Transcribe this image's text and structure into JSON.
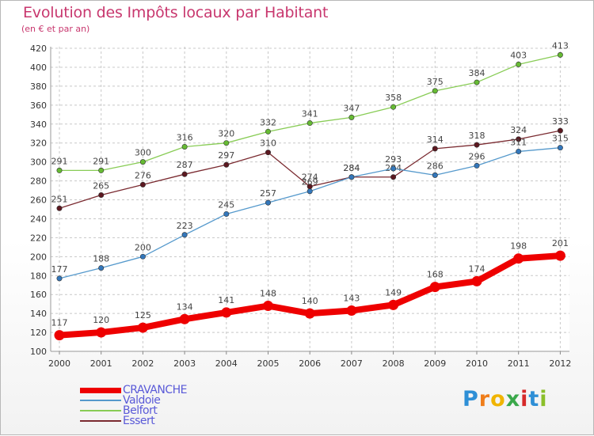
{
  "header": {
    "title": "Evolution des Impôts locaux par Habitant",
    "subtitle": "(en € et par an)"
  },
  "chart_data": {
    "type": "line",
    "x": [
      "2000",
      "2001",
      "2002",
      "2003",
      "2004",
      "2005",
      "2006",
      "2007",
      "2008",
      "2009",
      "2010",
      "2011",
      "2012"
    ],
    "y_ticks": [
      100,
      120,
      140,
      160,
      180,
      200,
      220,
      240,
      260,
      280,
      300,
      320,
      340,
      360,
      380,
      400,
      420
    ],
    "ylim": [
      100,
      420
    ],
    "grid": "dashed horizontal and vertical",
    "legend_position": "bottom-left",
    "series": [
      {
        "name": "Belfort",
        "color": "#88cc55",
        "dot": "#66bb33",
        "width": 1.3,
        "values": [
          291,
          291,
          300,
          316,
          320,
          332,
          341,
          347,
          358,
          375,
          384,
          403,
          413
        ],
        "labels": [
          "291",
          "291",
          "300",
          "316",
          "320",
          "332",
          "341",
          "347",
          "358",
          "375",
          "384",
          "403",
          "413"
        ]
      },
      {
        "name": "Essert",
        "color": "#7a2a30",
        "dot": "#5c1820",
        "width": 1.3,
        "values": [
          251,
          265,
          276,
          287,
          297,
          310,
          274,
          284,
          284,
          314,
          318,
          324,
          333
        ],
        "labels": [
          "251",
          "265",
          "276",
          "287",
          "297",
          "310",
          "274",
          "284",
          "284",
          "314",
          "318",
          "324",
          "333"
        ]
      },
      {
        "name": "Valdoie",
        "color": "#5599cc",
        "dot": "#3377bb",
        "width": 1.3,
        "values": [
          177,
          188,
          200,
          223,
          245,
          257,
          269,
          284,
          293,
          286,
          296,
          311,
          315
        ],
        "labels": [
          "177",
          "188",
          "200",
          "223",
          "245",
          "257",
          "269",
          "284",
          "293",
          "286",
          "296",
          "311",
          "315"
        ]
      },
      {
        "name": "CRAVANCHE",
        "color": "#ee0000",
        "dot": "#ee0000",
        "width": 8,
        "values": [
          117,
          120,
          125,
          134,
          141,
          148,
          140,
          143,
          149,
          168,
          174,
          198,
          201
        ],
        "labels": [
          "117",
          "120",
          "125",
          "134",
          "141",
          "148",
          "140",
          "143",
          "149",
          "168",
          "174",
          "198",
          "201"
        ]
      }
    ]
  },
  "legend": {
    "items": [
      {
        "name": "CRAVANCHE",
        "color": "#ee0000",
        "thickness": 7
      },
      {
        "name": "Valdoie",
        "color": "#5599cc",
        "thickness": 2
      },
      {
        "name": "Belfort",
        "color": "#88cc55",
        "thickness": 2
      },
      {
        "name": "Essert",
        "color": "#7a2a30",
        "thickness": 2
      }
    ]
  },
  "logo": {
    "text": "Proxiti",
    "letters": [
      {
        "ch": "P",
        "color": "#2e8fd6"
      },
      {
        "ch": "r",
        "color": "#ef7d1a"
      },
      {
        "ch": "o",
        "color": "#f0b400"
      },
      {
        "ch": "x",
        "color": "#3aa84a"
      },
      {
        "ch": "i",
        "color": "#d62a2a"
      },
      {
        "ch": "t",
        "color": "#2e8fd6"
      },
      {
        "ch": "i",
        "color": "#8bbf2a"
      }
    ]
  }
}
